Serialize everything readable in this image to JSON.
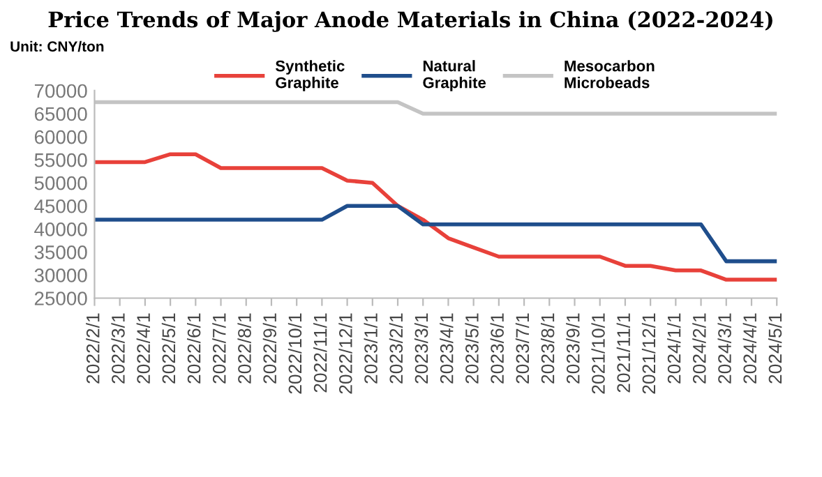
{
  "chart_data": {
    "type": "line",
    "title": "Price Trends of Major Anode Materials in China (2022-2024)",
    "annotations": [
      "Unit: CNY/ton"
    ],
    "categories": [
      "2022/2/1",
      "2022/3/1",
      "2022/4/1",
      "2022/5/1",
      "2022/6/1",
      "2022/7/1",
      "2022/8/1",
      "2022/9/1",
      "2022/10/1",
      "2022/11/1",
      "2022/12/1",
      "2023/1/1",
      "2023/2/1",
      "2023/3/1",
      "2023/4/1",
      "2023/5/1",
      "2023/6/1",
      "2023/7/1",
      "2023/8/1",
      "2023/9/1",
      "2021/10/1",
      "2021/11/1",
      "2021/12/1",
      "2024/1/1",
      "2024/2/1",
      "2024/3/1",
      "2024/4/1",
      "2024/5/1"
    ],
    "series": [
      {
        "name": "Synthetic Graphite",
        "color": "#e8413a",
        "values": [
          54500,
          54500,
          54500,
          56200,
          56200,
          53200,
          53200,
          53200,
          53200,
          53200,
          50500,
          50000,
          45000,
          42000,
          38000,
          36000,
          34000,
          34000,
          34000,
          34000,
          34000,
          32000,
          32000,
          31000,
          31000,
          29000,
          29000,
          29000
        ]
      },
      {
        "name": "Natural Graphite",
        "color": "#1f4e8c",
        "values": [
          42000,
          42000,
          42000,
          42000,
          42000,
          42000,
          42000,
          42000,
          42000,
          42000,
          45000,
          45000,
          45000,
          41000,
          41000,
          41000,
          41000,
          41000,
          41000,
          41000,
          41000,
          41000,
          41000,
          41000,
          41000,
          33000,
          33000,
          33000
        ]
      },
      {
        "name": "Mesocarbon Microbeads",
        "color": "#c4c4c4",
        "values": [
          67500,
          67500,
          67500,
          67500,
          67500,
          67500,
          67500,
          67500,
          67500,
          67500,
          67500,
          67500,
          67500,
          65000,
          65000,
          65000,
          65000,
          65000,
          65000,
          65000,
          65000,
          65000,
          65000,
          65000,
          65000,
          65000,
          65000,
          65000
        ]
      }
    ],
    "ylim": [
      25000,
      70000
    ],
    "yticks": [
      25000,
      30000,
      35000,
      40000,
      45000,
      50000,
      55000,
      60000,
      65000,
      70000
    ],
    "grid": false,
    "legend": "top",
    "marker": "none",
    "line_style": "solid"
  }
}
